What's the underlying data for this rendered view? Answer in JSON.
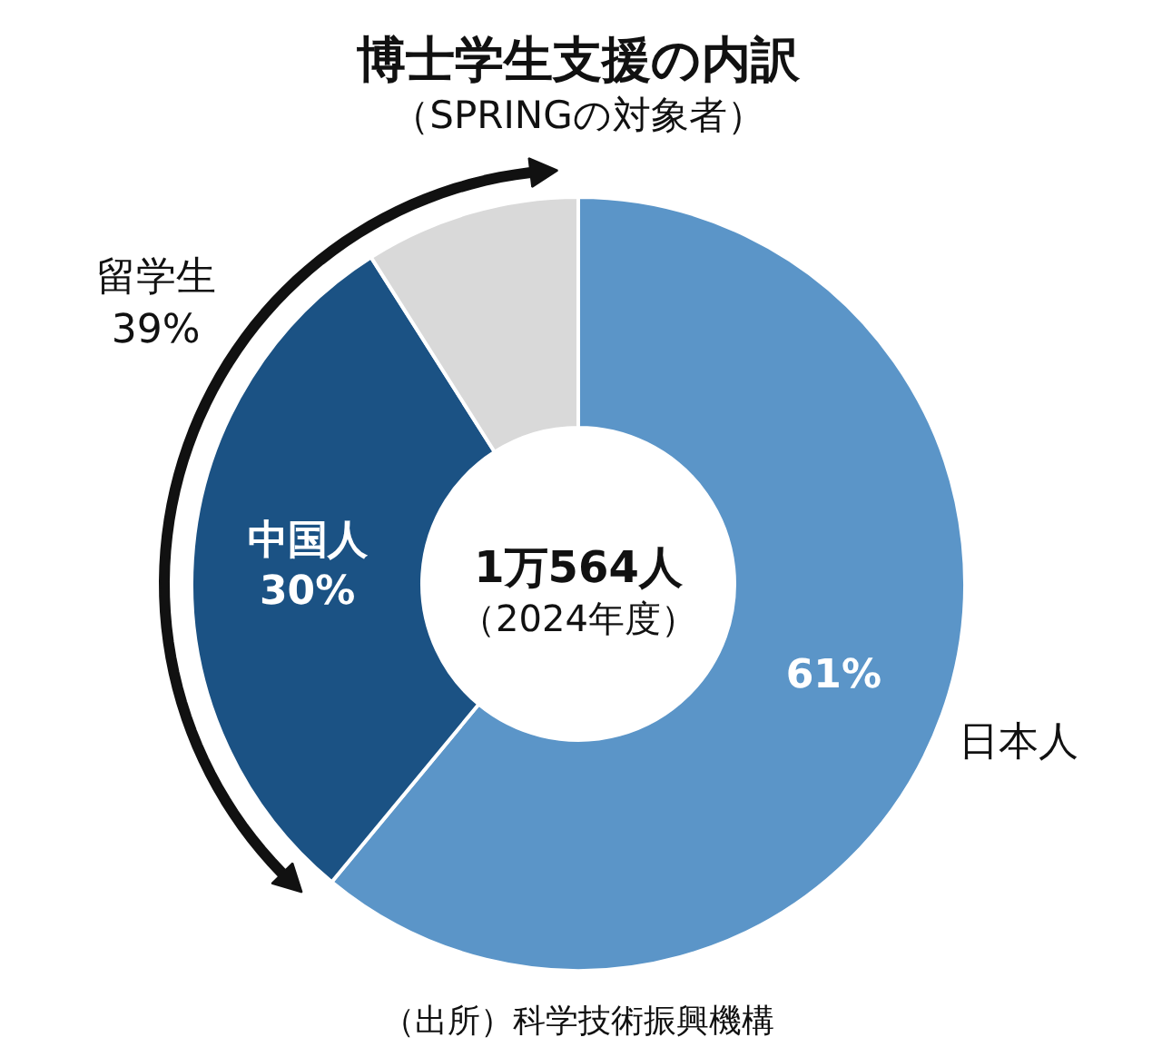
{
  "chart_data": {
    "type": "donut",
    "title": "博士学生支援の内訳",
    "subtitle": "（SPRINGの対象者）",
    "categories": [
      "日本人",
      "中国人",
      null
    ],
    "values": [
      61,
      30,
      9
    ],
    "colors": [
      "#5b95c8",
      "#1b5284",
      "#d9d9d9"
    ],
    "value_labels": [
      "61%",
      "30%",
      null
    ],
    "annotations": [
      "留学生\n39%",
      "1万564人",
      "（2024年度）",
      "（出所）科学技術振興機構"
    ]
  }
}
